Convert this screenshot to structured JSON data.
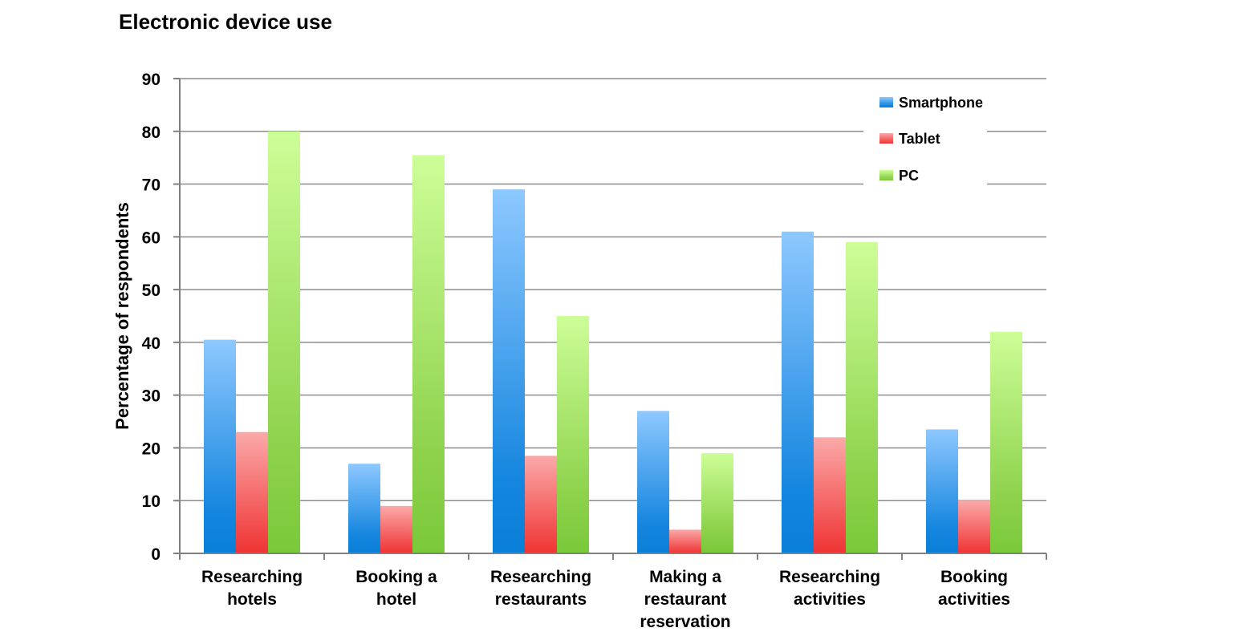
{
  "chart_data": {
    "type": "bar",
    "title": "Electronic device use",
    "xlabel": "",
    "ylabel": "Percentage of respondents",
    "ylim": [
      0,
      90
    ],
    "yticks": [
      0,
      10,
      20,
      30,
      40,
      50,
      60,
      70,
      80,
      90
    ],
    "grid": true,
    "legend_position": "top-right",
    "categories": [
      [
        "Researching",
        "hotels"
      ],
      [
        "Booking a",
        "hotel"
      ],
      [
        "Researching",
        "restaurants"
      ],
      [
        "Making a",
        "restaurant",
        "reservation"
      ],
      [
        "Researching",
        "activities"
      ],
      [
        "Booking",
        "activities"
      ]
    ],
    "series": [
      {
        "name": "Smartphone",
        "color": "#1e88dd",
        "values": [
          40.5,
          17,
          69,
          27,
          61,
          23.5
        ]
      },
      {
        "name": "Tablet",
        "color": "#f04848",
        "values": [
          23,
          9,
          18.5,
          4.5,
          22,
          10
        ]
      },
      {
        "name": "PC",
        "color": "#8cd04a",
        "values": [
          80,
          75.5,
          45,
          19,
          59,
          42
        ]
      }
    ]
  }
}
